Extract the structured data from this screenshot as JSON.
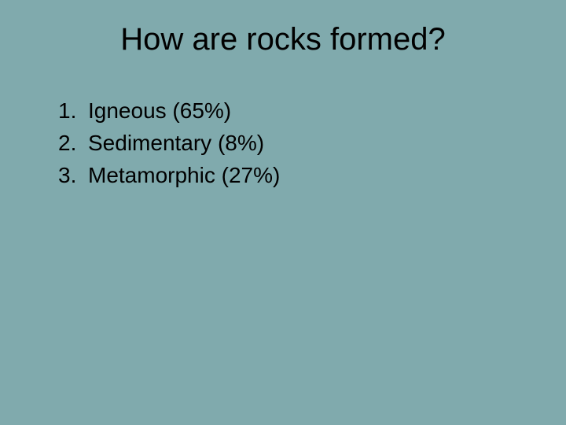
{
  "slide": {
    "title": "How are rocks formed?",
    "background_color": "#80aaad",
    "title_color": "#000000",
    "title_fontsize": 40,
    "text_color": "#000000",
    "text_fontsize": 28,
    "list_items": [
      {
        "number": "1.",
        "text": "Igneous (65%)"
      },
      {
        "number": "2.",
        "text": "Sedimentary (8%)"
      },
      {
        "number": "3.",
        "text": "Metamorphic (27%)"
      }
    ]
  }
}
